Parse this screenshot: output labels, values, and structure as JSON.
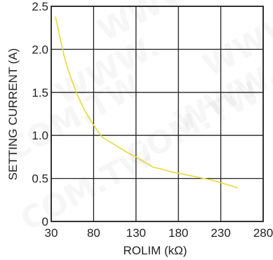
{
  "watermark": {
    "texts": [
      "WWW",
      "WWW",
      "COM.TW",
      "COM.TW",
      "WWW.",
      "WWW.",
      "COM.TW"
    ]
  },
  "chart_data": {
    "type": "line",
    "title": "",
    "xlabel": "ROLIM (kΩ)",
    "ylabel": "SETTING CURRENT (A)",
    "xlim": [
      30,
      280
    ],
    "ylim": [
      0,
      2.5
    ],
    "xticks": [
      30,
      80,
      130,
      180,
      230,
      280
    ],
    "xtick_labels": [
      "30",
      "80",
      "130",
      "180",
      "230",
      "280"
    ],
    "yticks": [
      0,
      0.5,
      1.0,
      1.5,
      2.0,
      2.5
    ],
    "ytick_labels": [
      "0",
      "0.5",
      "1.0",
      "1.5",
      "2.0",
      "2.5"
    ],
    "grid": true,
    "series": [
      {
        "color": "#e6d83a",
        "x": [
          35,
          40,
          45,
          50,
          55,
          60,
          65,
          70,
          80,
          90,
          100,
          110,
          120,
          130,
          140,
          150,
          160,
          170,
          180,
          190,
          200,
          210,
          220,
          230,
          240,
          250
        ],
        "y": [
          2.38,
          2.15,
          1.93,
          1.76,
          1.62,
          1.49,
          1.38,
          1.28,
          1.12,
          0.98,
          0.92,
          0.86,
          0.8,
          0.75,
          0.69,
          0.63,
          0.61,
          0.58,
          0.56,
          0.54,
          0.52,
          0.5,
          0.48,
          0.45,
          0.42,
          0.39
        ]
      }
    ]
  }
}
